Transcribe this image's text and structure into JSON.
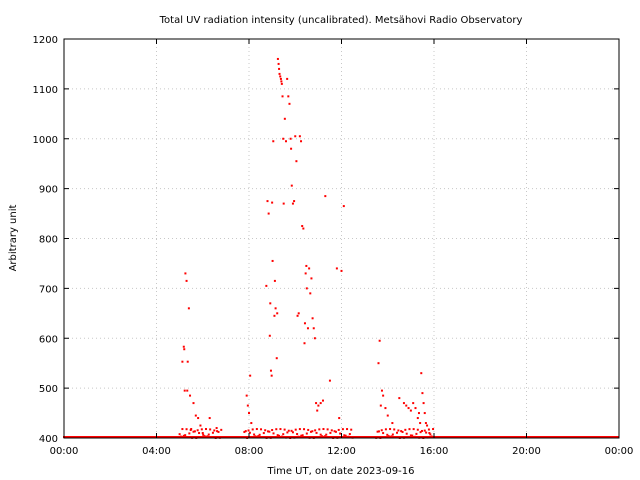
{
  "chart_data": {
    "type": "scatter",
    "title": "Total UV radiation intensity (uncalibrated). Metsähovi Radio Observatory",
    "xlabel": "Time UT, on date 2023-09-16",
    "ylabel": "Arbitrary unit",
    "xlim": [
      0,
      24
    ],
    "ylim": [
      400,
      1200
    ],
    "x_tick_labels": [
      "00:00",
      "04:00",
      "08:00",
      "12:00",
      "16:00",
      "20:00",
      "00:00"
    ],
    "y_tick_labels": [
      "400",
      "500",
      "600",
      "700",
      "800",
      "900",
      "1000",
      "1100",
      "1200"
    ],
    "grid": true,
    "marker_color": "#ff0000",
    "series": [
      {
        "x": [
          5.12,
          5.18,
          5.2,
          5.22,
          5.25,
          5.3,
          5.33,
          5.35,
          5.4,
          5.45,
          5.5,
          5.6,
          5.7,
          5.8,
          5.9,
          6.0,
          6.3,
          6.6,
          7.9,
          7.95,
          8.0,
          8.05,
          8.1,
          8.75,
          8.8,
          8.85,
          8.9,
          8.92,
          8.95,
          8.98,
          9.0,
          9.02,
          9.05,
          9.1,
          9.12,
          9.15,
          9.2,
          9.22,
          9.25,
          9.28,
          9.3,
          9.32,
          9.35,
          9.38,
          9.4,
          9.42,
          9.45,
          9.48,
          9.5,
          9.55,
          9.6,
          9.65,
          9.7,
          9.75,
          9.8,
          9.82,
          9.85,
          9.9,
          9.95,
          10.0,
          10.05,
          10.1,
          10.15,
          10.2,
          10.25,
          10.3,
          10.35,
          10.4,
          10.42,
          10.45,
          10.48,
          10.5,
          10.55,
          10.6,
          10.65,
          10.7,
          10.75,
          10.8,
          10.85,
          10.9,
          10.95,
          11.0,
          11.1,
          11.2,
          11.3,
          11.5,
          11.8,
          11.9,
          12.0,
          12.1,
          13.6,
          13.65,
          13.7,
          13.75,
          13.8,
          13.9,
          14.0,
          14.2,
          14.5,
          14.7,
          14.8,
          14.9,
          15.0,
          15.1,
          15.2,
          15.3,
          15.35,
          15.4,
          15.45,
          15.5,
          15.55,
          15.6,
          15.65,
          15.7,
          15.8
        ],
        "y": [
          553,
          583,
          578,
          495,
          730,
          715,
          495,
          553,
          660,
          485,
          418,
          470,
          445,
          440,
          425,
          410,
          440,
          420,
          485,
          465,
          450,
          525,
          430,
          705,
          875,
          850,
          605,
          670,
          535,
          525,
          872,
          755,
          995,
          645,
          715,
          660,
          560,
          650,
          1160,
          1150,
          1140,
          1130,
          1125,
          1120,
          1115,
          1110,
          1085,
          1000,
          870,
          1040,
          995,
          1120,
          1085,
          1070,
          1000,
          980,
          906,
          870,
          875,
          1005,
          955,
          645,
          650,
          1005,
          995,
          825,
          820,
          590,
          630,
          730,
          745,
          700,
          620,
          740,
          690,
          720,
          640,
          620,
          600,
          470,
          455,
          465,
          470,
          475,
          885,
          515,
          740,
          440,
          735,
          865,
          550,
          595,
          465,
          495,
          485,
          460,
          445,
          430,
          480,
          470,
          465,
          460,
          455,
          470,
          460,
          440,
          450,
          430,
          530,
          490,
          470,
          450,
          430,
          425,
          410
        ],
        "baseline_value": 400,
        "baseline_range": [
          0,
          24
        ]
      }
    ]
  }
}
